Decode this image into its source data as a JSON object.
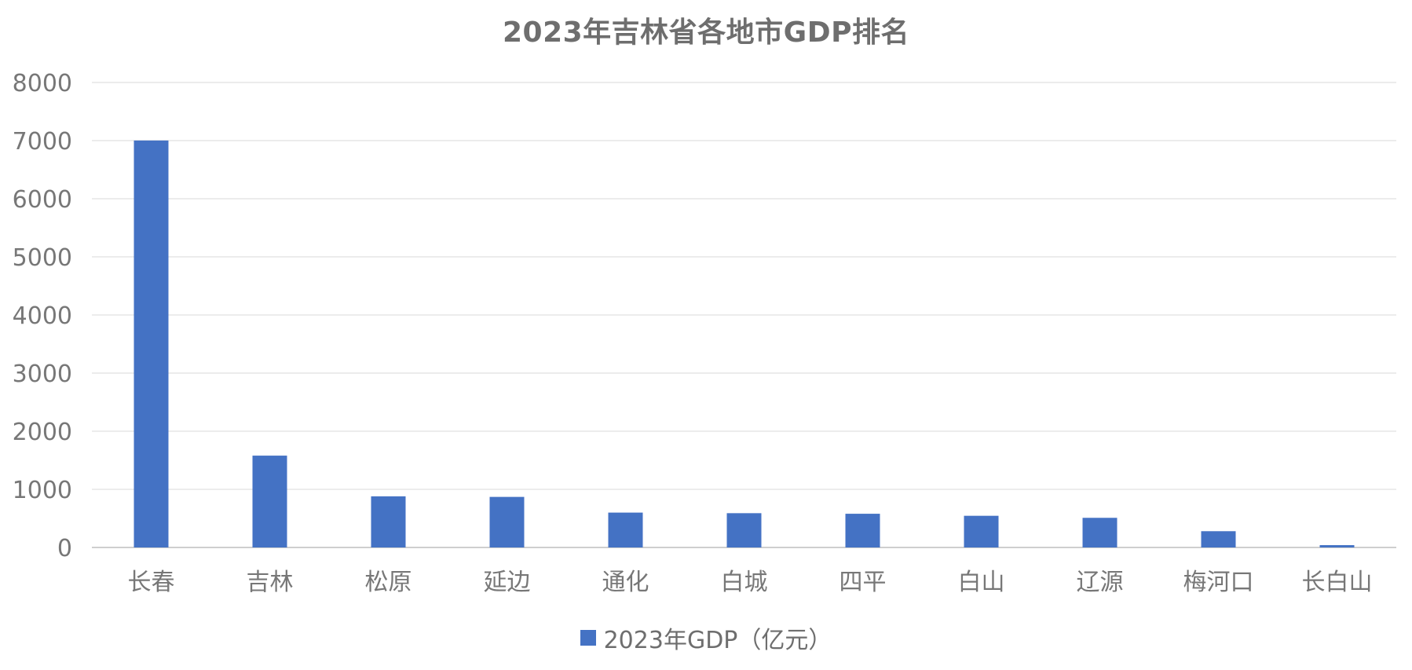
{
  "chart_data": {
    "type": "bar",
    "title": "2023年吉林省各地市GDP排名",
    "categories": [
      "长春",
      "吉林",
      "松原",
      "延边",
      "通化",
      "白城",
      "四平",
      "白山",
      "辽源",
      "梅河口",
      "长白山"
    ],
    "series": [
      {
        "name": "2023年GDP（亿元）",
        "values": [
          7002,
          1580,
          880,
          870,
          600,
          590,
          580,
          545,
          510,
          280,
          40
        ]
      }
    ],
    "yticks": [
      0,
      1000,
      2000,
      3000,
      4000,
      5000,
      6000,
      7000,
      8000
    ],
    "ylim": [
      0,
      8000
    ],
    "xlabel": "",
    "ylabel": "",
    "grid": true,
    "legend_position": "bottom-center",
    "colors": {
      "bar": "#4472c4",
      "grid": "#d9d9d9",
      "axis": "#bfbfbf",
      "text": "#777777"
    }
  }
}
